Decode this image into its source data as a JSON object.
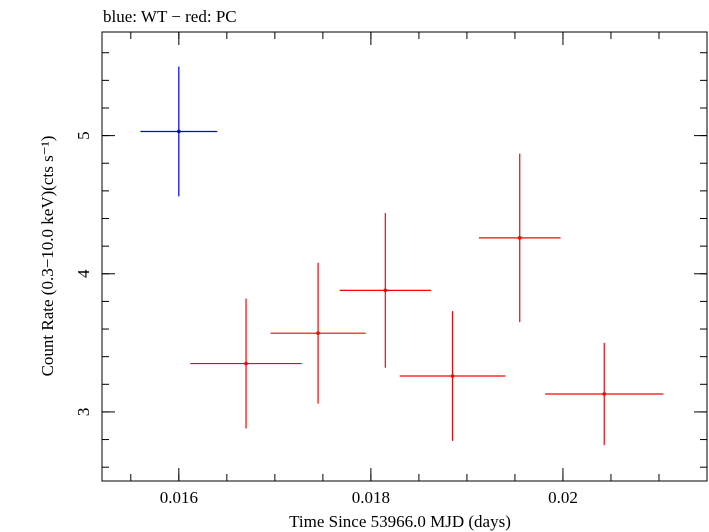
{
  "chart_data": {
    "type": "scatter",
    "title": "blue: WT − red: PC",
    "xlabel": "Time Since 53966.0 MJD (days)",
    "ylabel": "Count Rate (0.3−10.0 keV)(cts s⁻¹)",
    "xlim": [
      0.0152,
      0.0215
    ],
    "ylim": [
      2.5,
      5.75
    ],
    "x_ticks": [
      {
        "value": 0.016,
        "label": "0.016"
      },
      {
        "value": 0.018,
        "label": "0.018"
      },
      {
        "value": 0.02,
        "label": "0.02"
      }
    ],
    "y_ticks": [
      {
        "value": 3,
        "label": "3"
      },
      {
        "value": 4,
        "label": "4"
      },
      {
        "value": 5,
        "label": "5"
      }
    ],
    "x_minor_step": 0.0005,
    "y_minor_step": 0.2,
    "series": [
      {
        "name": "WT",
        "color": "#0000ff",
        "points": [
          {
            "x": 0.016,
            "xerr": 0.0008,
            "y": 5.03,
            "yerr": 0.47
          }
        ]
      },
      {
        "name": "PC",
        "color": "#ff0000",
        "points": [
          {
            "x": 0.0167,
            "xerr": 0.00116,
            "y": 3.35,
            "yerr": 0.47
          },
          {
            "x": 0.01745,
            "xerr": 0.00099,
            "y": 3.57,
            "yerr": 0.51
          },
          {
            "x": 0.01815,
            "xerr": 0.00095,
            "y": 3.88,
            "yerr": 0.56
          },
          {
            "x": 0.01885,
            "xerr": 0.0011,
            "y": 3.26,
            "yerr": 0.47
          },
          {
            "x": 0.01955,
            "xerr": 0.00085,
            "y": 4.26,
            "yerr": 0.61
          },
          {
            "x": 0.02043,
            "xerr": 0.00123,
            "y": 3.13,
            "yerr": 0.37
          }
        ]
      }
    ]
  }
}
